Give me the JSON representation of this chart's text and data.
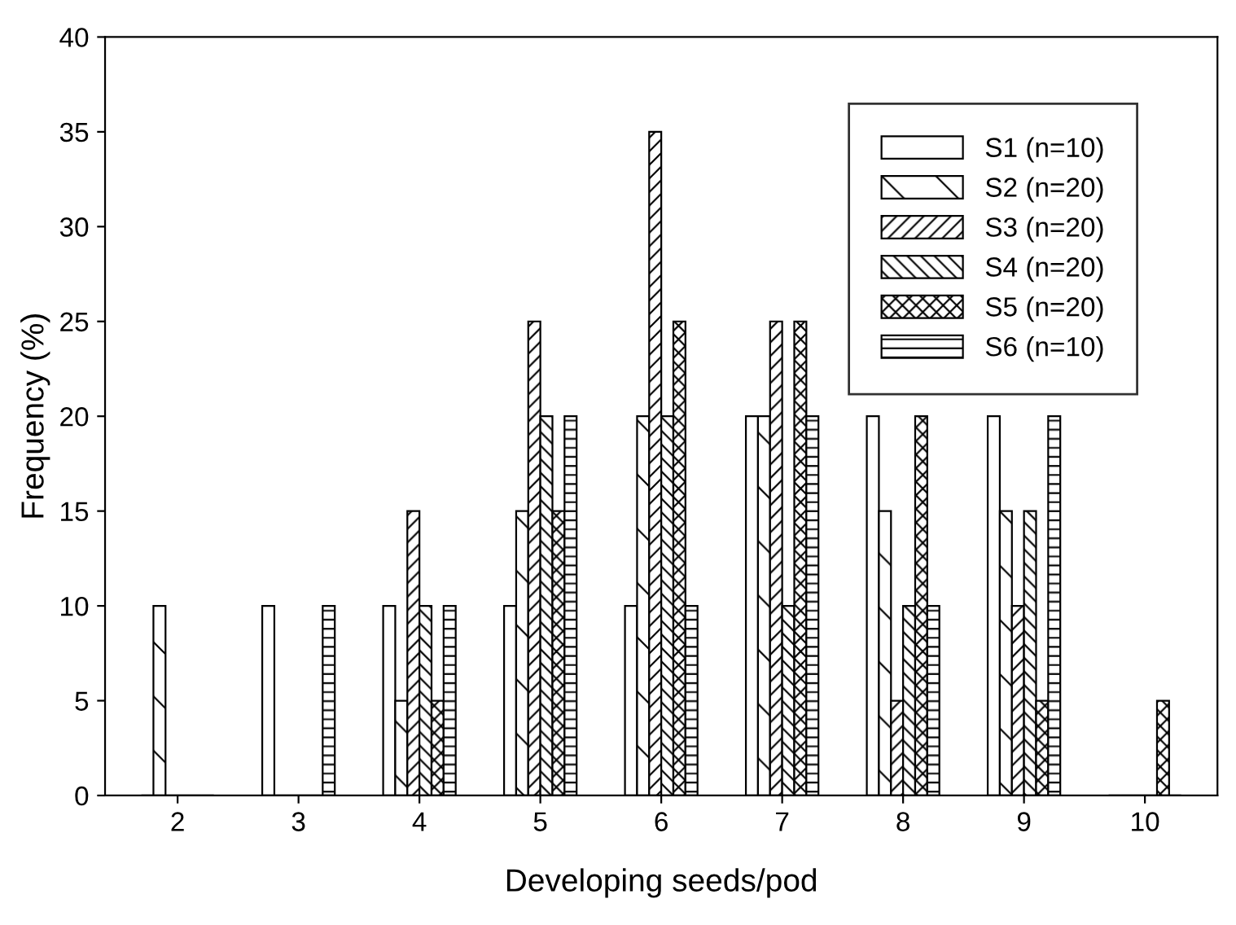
{
  "chart_data": {
    "type": "bar",
    "xlabel": "Developing seeds/pod",
    "ylabel": "Frequency (%)",
    "categories": [
      "2",
      "3",
      "4",
      "5",
      "6",
      "7",
      "8",
      "9",
      "10"
    ],
    "series": [
      {
        "name": "S1 (n=10)",
        "color": "#ffffff",
        "values": [
          0,
          10,
          10,
          10,
          10,
          20,
          20,
          20,
          0
        ]
      },
      {
        "name": "S2 (n=20)",
        "color": "#000000",
        "values": [
          10,
          0,
          5,
          15,
          20,
          20,
          15,
          15,
          0
        ]
      },
      {
        "name": "S3 (n=20)",
        "color": "#000000",
        "values": [
          0,
          0,
          15,
          25,
          35,
          25,
          5,
          10,
          0
        ]
      },
      {
        "name": "S4 (n=20)",
        "color": "#000000",
        "values": [
          0,
          0,
          10,
          20,
          20,
          10,
          10,
          15,
          0
        ]
      },
      {
        "name": "S5 (n=20)",
        "color": "#000000",
        "values": [
          0,
          0,
          5,
          15,
          25,
          25,
          20,
          5,
          5
        ]
      },
      {
        "name": "S6 (n=10)",
        "color": "#000000",
        "values": [
          0,
          10,
          10,
          20,
          10,
          20,
          10,
          20,
          0
        ]
      }
    ],
    "ylim": [
      0,
      40
    ],
    "yticks": [
      0,
      5,
      10,
      15,
      20,
      25,
      30,
      35,
      40
    ],
    "grid": false,
    "legend": "top right"
  }
}
